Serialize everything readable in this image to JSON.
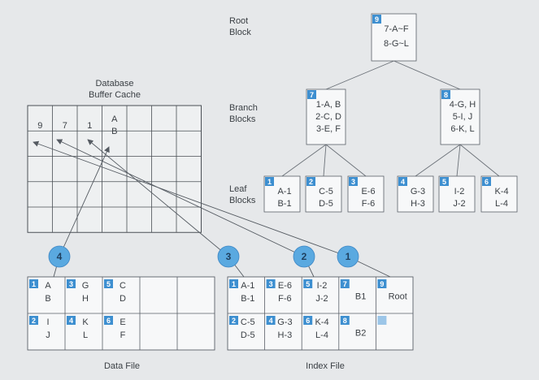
{
  "labels": {
    "buffer_cache": "Database\nBuffer Cache",
    "root_level": "Root\nBlock",
    "branch_level": "Branch\nBlocks",
    "leaf_level": "Leaf\nBlocks",
    "data_file": "Data File",
    "index_file": "Index File"
  },
  "tree": {
    "root": {
      "num": "9",
      "lines": [
        "7-A~F",
        "8-G~L"
      ]
    },
    "branches": [
      {
        "num": "7",
        "lines": [
          "1-A, B",
          "2-C, D",
          "3-E, F"
        ]
      },
      {
        "num": "8",
        "lines": [
          "4-G, H",
          "5-I, J",
          "6-K, L"
        ]
      }
    ],
    "leaves": [
      {
        "num": "1",
        "lines": [
          "A-1",
          "B-1"
        ]
      },
      {
        "num": "2",
        "lines": [
          "C-5",
          "D-5"
        ]
      },
      {
        "num": "3",
        "lines": [
          "E-6",
          "F-6"
        ]
      },
      {
        "num": "4",
        "lines": [
          "G-3",
          "H-3"
        ]
      },
      {
        "num": "5",
        "lines": [
          "I-2",
          "J-2"
        ]
      },
      {
        "num": "6",
        "lines": [
          "K-4",
          "L-4"
        ]
      }
    ]
  },
  "buffer_cache": {
    "cells": [
      "9",
      "7",
      "1",
      "A\nB"
    ]
  },
  "data_file": {
    "cells": [
      {
        "num": "1",
        "text": "A\nB"
      },
      {
        "num": "3",
        "text": "G\nH"
      },
      {
        "num": "5",
        "text": "C\nD"
      },
      {
        "num": "",
        "text": ""
      },
      {
        "num": "",
        "text": ""
      },
      {
        "num": "2",
        "text": "I\nJ"
      },
      {
        "num": "4",
        "text": "K\nL"
      },
      {
        "num": "6",
        "text": "E\nF"
      },
      {
        "num": "",
        "text": ""
      },
      {
        "num": "",
        "text": ""
      }
    ]
  },
  "index_file": {
    "cells": [
      {
        "num": "1",
        "text": "A-1\nB-1"
      },
      {
        "num": "3",
        "text": "E-6\nF-6"
      },
      {
        "num": "5",
        "text": "I-2\nJ-2"
      },
      {
        "num": "7",
        "text": "B1"
      },
      {
        "num": "9",
        "text": "Root"
      },
      {
        "num": "2",
        "text": "C-5\nD-5"
      },
      {
        "num": "4",
        "text": "G-3\nH-3"
      },
      {
        "num": "6",
        "text": "K-4\nL-4"
      },
      {
        "num": "8",
        "text": "B2"
      },
      {
        "num": "",
        "text": ""
      }
    ]
  },
  "steps": [
    "4",
    "3",
    "2",
    "1"
  ],
  "colors": {
    "accent": "#3d8fd0",
    "circle": "#5aa9e0",
    "line": "#555b62",
    "box": "#f7f8f9"
  }
}
